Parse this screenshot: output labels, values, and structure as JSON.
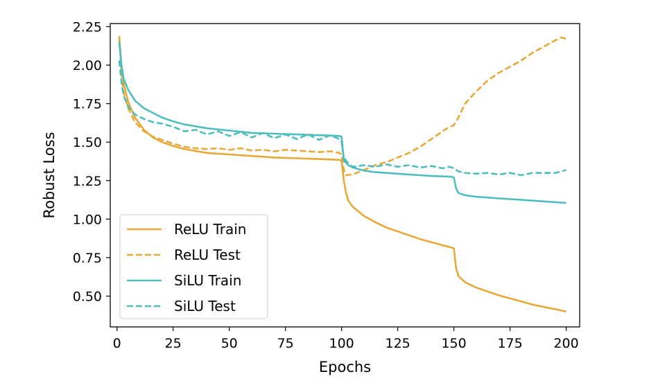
{
  "chart_data": {
    "type": "line",
    "title": "",
    "xlabel": "Epochs",
    "ylabel": "Robust Loss",
    "xlim": [
      -3,
      206
    ],
    "ylim": [
      0.3,
      2.27
    ],
    "xticks": [
      0,
      25,
      50,
      75,
      100,
      125,
      150,
      175,
      200
    ],
    "yticks": [
      0.5,
      0.75,
      1.0,
      1.25,
      1.5,
      1.75,
      2.0,
      2.25
    ],
    "xtick_labels": [
      "0",
      "25",
      "50",
      "75",
      "100",
      "125",
      "150",
      "175",
      "200"
    ],
    "ytick_labels": [
      "0.50",
      "0.75",
      "1.00",
      "1.25",
      "1.50",
      "1.75",
      "2.00",
      "2.25"
    ],
    "grid": false,
    "legend_position": "lower-left",
    "colors": {
      "relu": "#E8A838",
      "silu": "#4DBDBD"
    },
    "series": [
      {
        "name": "ReLU Train",
        "style": "solid",
        "color": "#E8A838",
        "points": [
          [
            1,
            2.18
          ],
          [
            2,
            1.98
          ],
          [
            3,
            1.88
          ],
          [
            5,
            1.76
          ],
          [
            8,
            1.66
          ],
          [
            12,
            1.58
          ],
          [
            16,
            1.53
          ],
          [
            20,
            1.5
          ],
          [
            25,
            1.475
          ],
          [
            30,
            1.455
          ],
          [
            40,
            1.43
          ],
          [
            50,
            1.42
          ],
          [
            60,
            1.41
          ],
          [
            70,
            1.4
          ],
          [
            80,
            1.395
          ],
          [
            90,
            1.39
          ],
          [
            99,
            1.385
          ],
          [
            100,
            1.38
          ],
          [
            101,
            1.25
          ],
          [
            102,
            1.17
          ],
          [
            103,
            1.12
          ],
          [
            105,
            1.08
          ],
          [
            110,
            1.02
          ],
          [
            115,
            0.98
          ],
          [
            120,
            0.945
          ],
          [
            125,
            0.92
          ],
          [
            130,
            0.895
          ],
          [
            135,
            0.87
          ],
          [
            140,
            0.85
          ],
          [
            145,
            0.83
          ],
          [
            149,
            0.815
          ],
          [
            150,
            0.81
          ],
          [
            151,
            0.68
          ],
          [
            152,
            0.63
          ],
          [
            155,
            0.59
          ],
          [
            160,
            0.555
          ],
          [
            165,
            0.53
          ],
          [
            170,
            0.505
          ],
          [
            175,
            0.485
          ],
          [
            180,
            0.465
          ],
          [
            185,
            0.445
          ],
          [
            190,
            0.43
          ],
          [
            195,
            0.415
          ],
          [
            200,
            0.4
          ]
        ]
      },
      {
        "name": "ReLU Test",
        "style": "dashed",
        "color": "#E8A838",
        "points": [
          [
            1,
            2.19
          ],
          [
            2,
            1.95
          ],
          [
            3,
            1.82
          ],
          [
            5,
            1.72
          ],
          [
            8,
            1.63
          ],
          [
            12,
            1.57
          ],
          [
            16,
            1.535
          ],
          [
            20,
            1.515
          ],
          [
            25,
            1.49
          ],
          [
            30,
            1.47
          ],
          [
            35,
            1.46
          ],
          [
            40,
            1.455
          ],
          [
            45,
            1.46
          ],
          [
            50,
            1.45
          ],
          [
            55,
            1.46
          ],
          [
            60,
            1.445
          ],
          [
            65,
            1.45
          ],
          [
            70,
            1.44
          ],
          [
            75,
            1.45
          ],
          [
            80,
            1.445
          ],
          [
            85,
            1.44
          ],
          [
            90,
            1.435
          ],
          [
            95,
            1.44
          ],
          [
            99,
            1.43
          ],
          [
            100,
            1.42
          ],
          [
            101,
            1.32
          ],
          [
            102,
            1.285
          ],
          [
            105,
            1.29
          ],
          [
            110,
            1.32
          ],
          [
            115,
            1.35
          ],
          [
            120,
            1.37
          ],
          [
            125,
            1.4
          ],
          [
            130,
            1.43
          ],
          [
            135,
            1.47
          ],
          [
            140,
            1.52
          ],
          [
            145,
            1.57
          ],
          [
            148,
            1.6
          ],
          [
            150,
            1.61
          ],
          [
            152,
            1.66
          ],
          [
            155,
            1.75
          ],
          [
            160,
            1.83
          ],
          [
            165,
            1.9
          ],
          [
            170,
            1.95
          ],
          [
            175,
            1.99
          ],
          [
            180,
            2.03
          ],
          [
            185,
            2.08
          ],
          [
            190,
            2.12
          ],
          [
            195,
            2.16
          ],
          [
            198,
            2.18
          ],
          [
            200,
            2.17
          ]
        ]
      },
      {
        "name": "SiLU Train",
        "style": "solid",
        "color": "#4DBDBD",
        "points": [
          [
            1,
            2.15
          ],
          [
            2,
            2.0
          ],
          [
            3,
            1.91
          ],
          [
            5,
            1.84
          ],
          [
            8,
            1.77
          ],
          [
            12,
            1.72
          ],
          [
            16,
            1.69
          ],
          [
            20,
            1.66
          ],
          [
            25,
            1.635
          ],
          [
            30,
            1.615
          ],
          [
            40,
            1.59
          ],
          [
            50,
            1.575
          ],
          [
            60,
            1.56
          ],
          [
            70,
            1.555
          ],
          [
            80,
            1.55
          ],
          [
            90,
            1.545
          ],
          [
            99,
            1.54
          ],
          [
            100,
            1.535
          ],
          [
            101,
            1.38
          ],
          [
            103,
            1.35
          ],
          [
            105,
            1.335
          ],
          [
            110,
            1.315
          ],
          [
            115,
            1.305
          ],
          [
            120,
            1.3
          ],
          [
            125,
            1.295
          ],
          [
            130,
            1.29
          ],
          [
            135,
            1.285
          ],
          [
            140,
            1.28
          ],
          [
            145,
            1.278
          ],
          [
            149,
            1.275
          ],
          [
            150,
            1.27
          ],
          [
            151,
            1.2
          ],
          [
            152,
            1.17
          ],
          [
            155,
            1.155
          ],
          [
            160,
            1.145
          ],
          [
            165,
            1.14
          ],
          [
            170,
            1.135
          ],
          [
            175,
            1.13
          ],
          [
            180,
            1.125
          ],
          [
            185,
            1.12
          ],
          [
            190,
            1.115
          ],
          [
            195,
            1.11
          ],
          [
            200,
            1.105
          ]
        ]
      },
      {
        "name": "SiLU Test",
        "style": "dashed",
        "color": "#4DBDBD",
        "points": [
          [
            1,
            2.03
          ],
          [
            2,
            1.89
          ],
          [
            3,
            1.8
          ],
          [
            5,
            1.73
          ],
          [
            8,
            1.68
          ],
          [
            12,
            1.65
          ],
          [
            16,
            1.63
          ],
          [
            20,
            1.62
          ],
          [
            25,
            1.6
          ],
          [
            30,
            1.57
          ],
          [
            35,
            1.58
          ],
          [
            40,
            1.55
          ],
          [
            45,
            1.57
          ],
          [
            50,
            1.54
          ],
          [
            55,
            1.565
          ],
          [
            60,
            1.53
          ],
          [
            65,
            1.56
          ],
          [
            70,
            1.525
          ],
          [
            75,
            1.55
          ],
          [
            80,
            1.52
          ],
          [
            85,
            1.55
          ],
          [
            90,
            1.515
          ],
          [
            95,
            1.545
          ],
          [
            99,
            1.52
          ],
          [
            100,
            1.5
          ],
          [
            101,
            1.4
          ],
          [
            103,
            1.36
          ],
          [
            105,
            1.34
          ],
          [
            110,
            1.35
          ],
          [
            115,
            1.34
          ],
          [
            120,
            1.355
          ],
          [
            125,
            1.34
          ],
          [
            130,
            1.35
          ],
          [
            135,
            1.335
          ],
          [
            140,
            1.345
          ],
          [
            145,
            1.33
          ],
          [
            148,
            1.34
          ],
          [
            150,
            1.33
          ],
          [
            152,
            1.31
          ],
          [
            155,
            1.3
          ],
          [
            160,
            1.295
          ],
          [
            165,
            1.3
          ],
          [
            170,
            1.29
          ],
          [
            175,
            1.3
          ],
          [
            180,
            1.285
          ],
          [
            185,
            1.3
          ],
          [
            190,
            1.3
          ],
          [
            195,
            1.3
          ],
          [
            198,
            1.31
          ],
          [
            200,
            1.32
          ]
        ]
      }
    ]
  }
}
